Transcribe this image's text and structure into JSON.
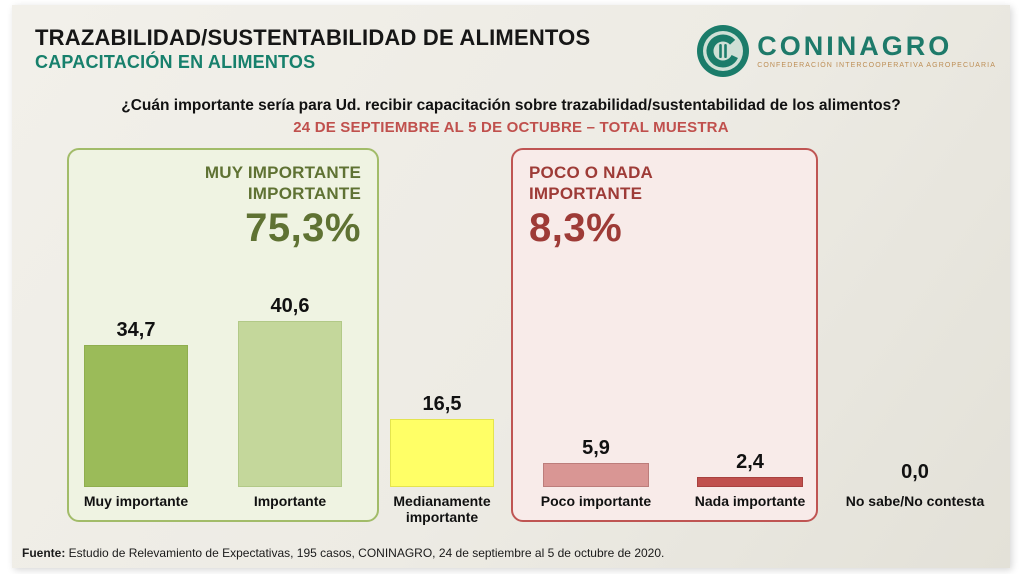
{
  "header": {
    "title": "TRAZABILIDAD/SUSTENTABILIDAD DE ALIMENTOS",
    "subtitle": "CAPACITACIÓN EN ALIMENTOS",
    "logo": {
      "name": "CONINAGRO",
      "tagline": "CONFEDERACIÓN INTERCOOPERATIVA AGROPECUARIA"
    }
  },
  "question": "¿Cuán importante sería para Ud. recibir capacitación sobre trazabilidad/sustentabilidad de los alimentos?",
  "period": "24 DE SEPTIEMBRE AL 5 DE OCTUBRE – TOTAL MUESTRA",
  "colors": {
    "accent_teal": "#17806c",
    "accent_red": "#c0504d",
    "title_black": "#161616",
    "slide_background": "#edebe4"
  },
  "chart_data": {
    "type": "bar",
    "title": "¿Cuán importante sería para Ud. recibir capacitación sobre trazabilidad/sustentabilidad de los alimentos?",
    "subtitle": "24 DE SEPTIEMBRE AL 5 DE OCTUBRE – TOTAL MUESTRA",
    "categories": [
      "Muy importante",
      "Importante",
      "Medianamente importante",
      "Poco importante",
      "Nada importante",
      "No sabe/No contesta"
    ],
    "values": [
      34.7,
      40.6,
      16.5,
      5.9,
      2.4,
      0.0
    ],
    "value_labels": [
      "34,7",
      "40,6",
      "16,5",
      "5,9",
      "2,4",
      "0,0"
    ],
    "bar_colors": [
      "#9bbb59",
      "#c4d79b",
      "#ffff66",
      "#d99694",
      "#c0504d",
      "#c0504d"
    ],
    "bar_border_colors": [
      "#8fae4e",
      "#b2c987",
      "#e4e44e",
      "#bc7d7b",
      "#a8413f",
      "transparent"
    ],
    "xlabel": "",
    "ylabel": "",
    "ylim": [
      0,
      45
    ],
    "grid": false,
    "legend": false,
    "groups": [
      {
        "title": "MUY IMPORTANTE\nIMPORTANTE",
        "value_label": "75,3%",
        "value": 75.3,
        "categories_covered": [
          "Muy importante",
          "Importante"
        ],
        "color": "#5f7233",
        "background": "#eff3e2",
        "border": "#a2bc69"
      },
      {
        "title": "POCO O NADA\nIMPORTANTE",
        "value_label": "8,3%",
        "value": 8.3,
        "categories_covered": [
          "Poco importante",
          "Nada importante"
        ],
        "color": "#9e3b37",
        "background": "#f8ebe9",
        "border": "#bf5553"
      }
    ]
  },
  "footer": {
    "label": "Fuente:",
    "text": " Estudio de Relevamiento de Expectativas, 195 casos, CONINAGRO, 24 de septiembre al 5 de octubre de 2020."
  }
}
